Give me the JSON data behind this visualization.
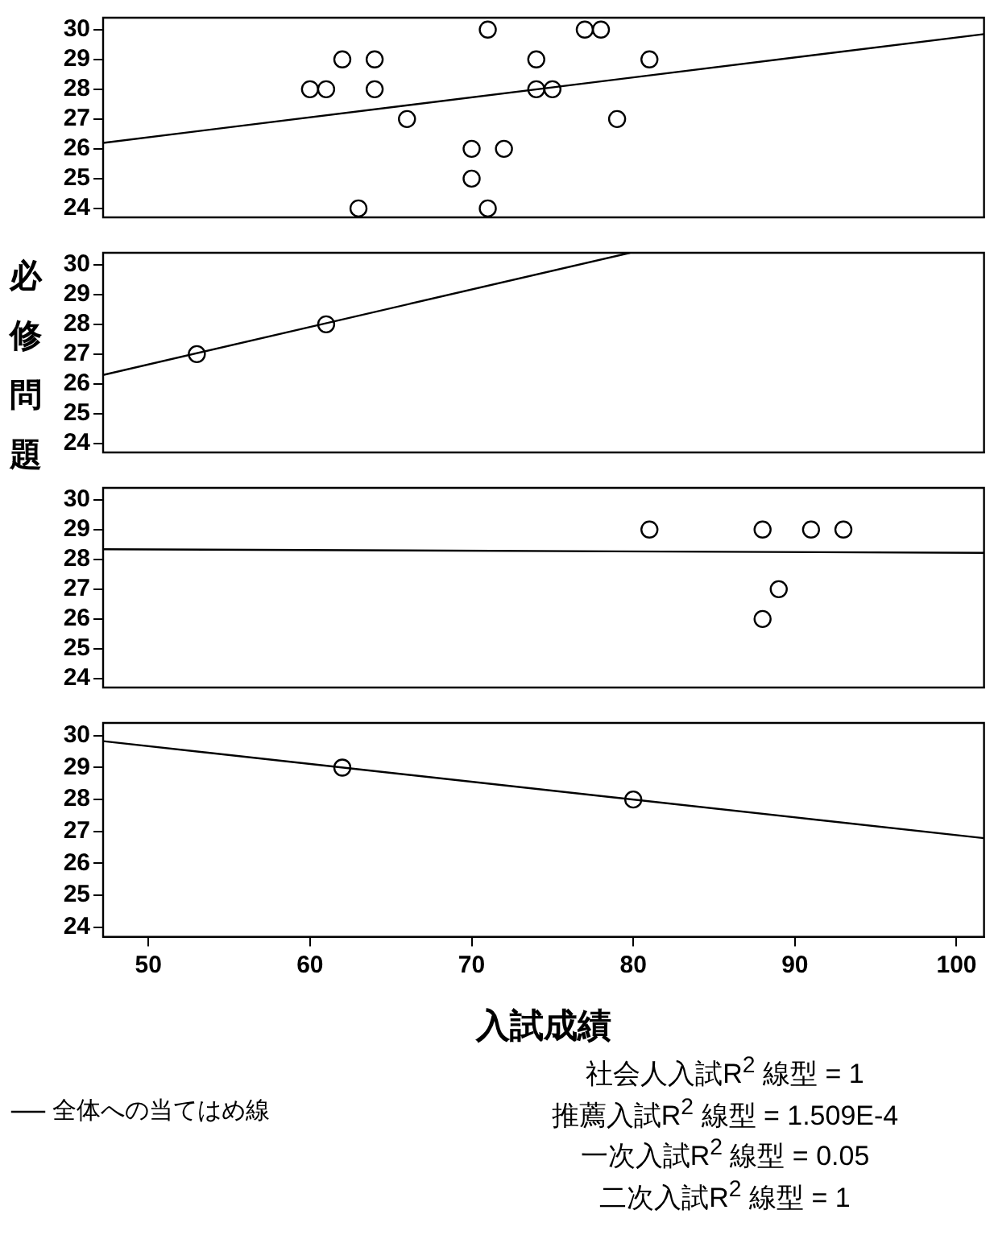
{
  "chart_data": [
    {
      "type": "scatter",
      "series": [
        {
          "type": "scatter",
          "color": "#000000",
          "x": [
            71,
            77,
            78,
            62,
            64,
            74,
            81,
            60,
            61,
            64,
            74,
            75,
            66,
            79,
            70,
            72,
            70,
            63,
            71
          ],
          "values": [
            30,
            30,
            30,
            29,
            29,
            29,
            29,
            28,
            28,
            28,
            28,
            28,
            27,
            27,
            26,
            26,
            25,
            24,
            24
          ]
        },
        {
          "type": "line",
          "color": "#000000",
          "marker": "none",
          "x": [
            47.2,
            101.7
          ],
          "values": [
            26.2,
            29.85
          ]
        }
      ],
      "xlim": [
        47.2,
        101.7
      ],
      "ylim": [
        23.7,
        30.4
      ],
      "yticks": [
        24,
        25,
        26,
        27,
        28,
        29,
        30
      ],
      "tick_labels": "y",
      "marker": "circle"
    },
    {
      "type": "scatter",
      "ylabel": "必修問題",
      "series": [
        {
          "type": "scatter",
          "color": "#000000",
          "x": [
            53,
            61
          ],
          "values": [
            27,
            28
          ]
        },
        {
          "type": "line",
          "color": "#000000",
          "marker": "none",
          "x": [
            47.2,
            79.8
          ],
          "values": [
            26.3,
            30.4
          ]
        }
      ],
      "xlim": [
        47.2,
        101.7
      ],
      "ylim": [
        23.7,
        30.4
      ],
      "yticks": [
        24,
        25,
        26,
        27,
        28,
        29,
        30
      ],
      "tick_labels": "y",
      "marker": "circle"
    },
    {
      "type": "scatter",
      "series": [
        {
          "type": "scatter",
          "color": "#000000",
          "x": [
            81,
            88,
            91,
            93,
            89,
            88
          ],
          "values": [
            29,
            29,
            29,
            29,
            27,
            26
          ]
        },
        {
          "type": "line",
          "color": "#000000",
          "marker": "none",
          "x": [
            47.2,
            101.7
          ],
          "values": [
            28.34,
            28.22
          ]
        }
      ],
      "xlim": [
        47.2,
        101.7
      ],
      "ylim": [
        23.7,
        30.4
      ],
      "yticks": [
        24,
        25,
        26,
        27,
        28,
        29,
        30
      ],
      "tick_labels": "y",
      "marker": "circle"
    },
    {
      "type": "scatter",
      "xlabel": "入試成績",
      "legend": "bottom left",
      "series": [
        {
          "type": "scatter",
          "color": "#000000",
          "x": [
            62,
            80
          ],
          "values": [
            29,
            28
          ]
        },
        {
          "type": "line",
          "name": "全体への当てはめ線",
          "color": "#000000",
          "marker": "none",
          "x": [
            47.2,
            101.7
          ],
          "values": [
            29.83,
            26.79
          ]
        }
      ],
      "xlim": [
        47.2,
        101.7
      ],
      "xticks": [
        50,
        60,
        70,
        80,
        90,
        100
      ],
      "ylim": [
        23.7,
        30.4
      ],
      "yticks": [
        24,
        25,
        26,
        27,
        28,
        29,
        30
      ],
      "marker": "circle",
      "annotations": [
        "社会人入試R$^{2}$ 線型 = 1",
        "推薦入試R$^{2}$ 線型 = 1.509E-4",
        "一次入試R$^{2}$ 線型 = 0.05",
        "二次入試R$^{2}$ 線型 = 1"
      ]
    }
  ]
}
